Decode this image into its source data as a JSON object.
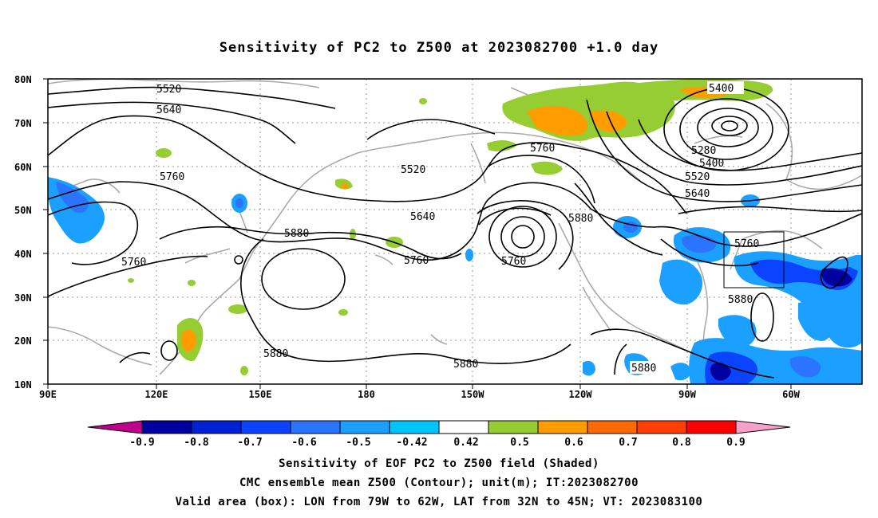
{
  "title": "Sensitivity of PC2 to Z500 at 2023082700 +1.0 day",
  "map": {
    "lat_ticks": [
      "80N",
      "70N",
      "60N",
      "50N",
      "40N",
      "30N",
      "20N",
      "10N"
    ],
    "lon_ticks": [
      "90E",
      "120E",
      "150E",
      "180",
      "150W",
      "120W",
      "90W",
      "60W"
    ],
    "contour_labels": [
      "5520",
      "5640",
      "5760",
      "5400",
      "5280",
      "5400",
      "5520",
      "5640",
      "5760",
      "5520",
      "5640",
      "5880",
      "5760",
      "5760",
      "5760",
      "5880",
      "5760",
      "5880",
      "5880",
      "5880",
      "5880"
    ],
    "box": {
      "lon_from": "79W",
      "lon_to": "62W",
      "lat_from": "32N",
      "lat_to": "45N"
    }
  },
  "colorbar": {
    "labels": [
      "-0.9",
      "-0.8",
      "-0.7",
      "-0.6",
      "-0.5",
      "-0.42",
      "0.42",
      "0.5",
      "0.6",
      "0.7",
      "0.8",
      "0.9"
    ],
    "colors": [
      "#0000a0",
      "#0022d4",
      "#0a44ff",
      "#2a74ff",
      "#1ca0ff",
      "#00c4ff",
      "#ffffff",
      "#96cd32",
      "#ff9d00",
      "#ff6b00",
      "#ff3f00",
      "#ff0000"
    ],
    "left_triangle": "#c0008c",
    "right_triangle": "#f7a1c8"
  },
  "caption": {
    "line1": "Sensitivity of EOF PC2 to Z500 field (Shaded)",
    "line2": "CMC ensemble mean Z500 (Contour); unit(m); IT:2023082700",
    "line3": "Valid area (box): LON from 79W to 62W, LAT from 32N to 45N; VT: 2023083100"
  }
}
